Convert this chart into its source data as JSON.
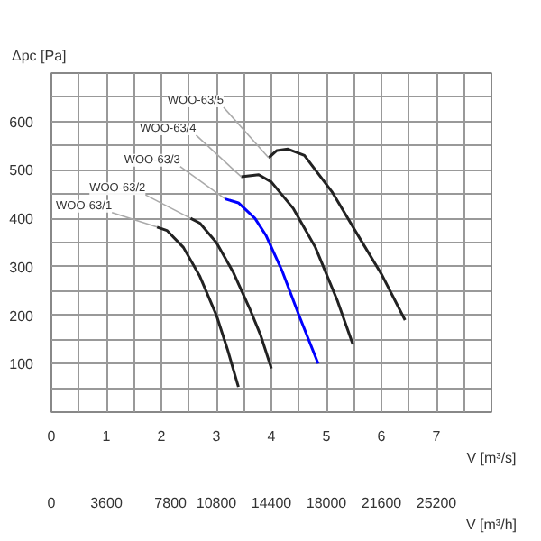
{
  "chart_data": {
    "type": "line",
    "ylabel": "Δpc [Pa]",
    "xlabel": "V [m³/s]",
    "x2label": "V [m³/h]",
    "xlim": [
      0,
      8
    ],
    "ylim": [
      0,
      700
    ],
    "x2lim": [
      0,
      28800
    ],
    "xticks": [
      0,
      {
        "value": 0.5,
        "label": null
      },
      1,
      {
        "value": 1.5,
        "label": null
      },
      2,
      {
        "value": 2.5,
        "label": null
      },
      3,
      {
        "value": 3.5,
        "label": null
      },
      4,
      {
        "value": 4.5,
        "label": null
      },
      5,
      {
        "value": 5.5,
        "label": null
      },
      6,
      {
        "value": 6.5,
        "label": null
      },
      7,
      {
        "value": 7.5,
        "label": null
      }
    ],
    "x2ticks": [
      0,
      3600,
      7800,
      10800,
      14400,
      18000,
      21600,
      25200
    ],
    "yticks": [
      {
        "value": 50,
        "label": null
      },
      100,
      {
        "value": 150,
        "label": null
      },
      200,
      {
        "value": 250,
        "label": null
      },
      300,
      {
        "value": 350,
        "label": null
      },
      400,
      {
        "value": 450,
        "label": null
      },
      500,
      {
        "value": 550,
        "label": null
      },
      600,
      {
        "value": 650,
        "label": null
      }
    ],
    "grid": true,
    "marker": "none",
    "line_style": "solid",
    "series": [
      {
        "name": "WOO-63/1",
        "color": "#222222",
        "x": [
          1.92,
          2.1,
          2.4,
          2.7,
          3.0,
          3.2,
          3.4
        ],
        "values": [
          382,
          375,
          340,
          280,
          200,
          130,
          52
        ]
      },
      {
        "name": "WOO-63/2",
        "color": "#222222",
        "x": [
          2.53,
          2.7,
          3.0,
          3.3,
          3.6,
          3.8,
          4.0
        ],
        "values": [
          400,
          390,
          350,
          290,
          215,
          160,
          90
        ]
      },
      {
        "name": "WOO-63/3",
        "color": "#0000ff",
        "x": [
          3.16,
          3.4,
          3.7,
          3.9,
          4.2,
          4.5,
          4.85
        ],
        "values": [
          440,
          432,
          400,
          365,
          290,
          200,
          100
        ]
      },
      {
        "name": "WOO-63/4",
        "color": "#222222",
        "x": [
          3.45,
          3.77,
          4.0,
          4.4,
          4.8,
          5.2,
          5.48
        ],
        "values": [
          486,
          490,
          475,
          420,
          340,
          230,
          140
        ]
      },
      {
        "name": "WOO-63/5",
        "color": "#222222",
        "x": [
          3.95,
          4.1,
          4.3,
          4.6,
          5.1,
          5.6,
          6.0,
          6.43
        ],
        "values": [
          525,
          540,
          543,
          530,
          455,
          360,
          285,
          190
        ]
      }
    ]
  }
}
